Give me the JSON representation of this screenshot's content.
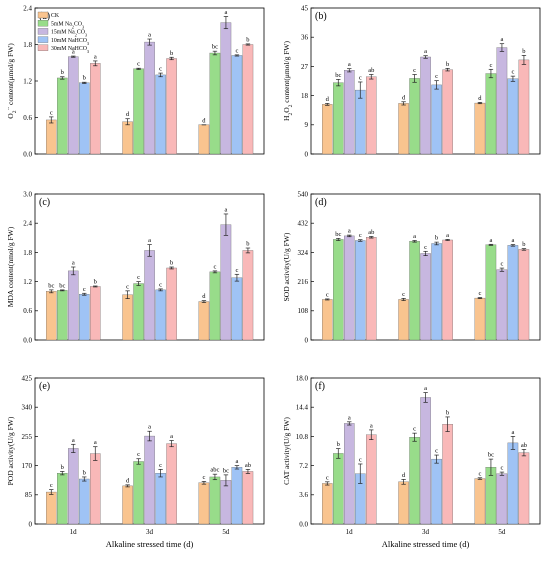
{
  "colors": {
    "CK": "#f9c48f",
    "5mM Na2CO3": "#98dc8a",
    "15mM Na2CO3": "#c7b7e0",
    "10mM NaHCO3": "#9fc3f5",
    "30mM NaHCO3": "#f9b8b8"
  },
  "legend": {
    "placement": "top-left",
    "items": [
      {
        "key": "CK",
        "base": "CK",
        "sub": ""
      },
      {
        "key": "5mM Na2CO3",
        "base": "5mM Na",
        "sub": "2",
        "rest": "CO",
        "sub2": "3"
      },
      {
        "key": "15mM Na2CO3",
        "base": "15mM Na",
        "sub": "2",
        "rest": "CO",
        "sub2": "3"
      },
      {
        "key": "10mM NaHCO3",
        "base": "10mM NaHCO",
        "sub": "3"
      },
      {
        "key": "30mM NaHCO3",
        "base": "30mM NaHCO",
        "sub": "3"
      }
    ]
  },
  "xlabel": "Alkaline stressed time (d)",
  "chart_data": [
    {
      "panel": "(a)",
      "type": "bar",
      "ylabel_parts": [
        "O",
        "2",
        "·",
        "-",
        " content(μmol/g FW)"
      ],
      "ylim": [
        0,
        2.4
      ],
      "yticks": [
        "0.0",
        "0.6",
        "1.2",
        "1.8",
        "2.4"
      ],
      "yticks_values": [
        0,
        0.6,
        1.2,
        1.8,
        2.4
      ],
      "categories": [
        "1d",
        "3d",
        "5d"
      ],
      "series": [
        {
          "name": "CK",
          "values": [
            0.56,
            0.53,
            0.48
          ],
          "errors": [
            0.05,
            0.05,
            0.0
          ],
          "labels": [
            "c",
            "d",
            "d"
          ]
        },
        {
          "name": "5mM Na2CO3",
          "values": [
            1.25,
            1.4,
            1.66
          ],
          "errors": [
            0.02,
            0.01,
            0.03
          ],
          "labels": [
            "b",
            "c",
            "bc"
          ]
        },
        {
          "name": "15mM Na2CO3",
          "values": [
            1.6,
            1.84,
            2.16
          ],
          "errors": [
            0.01,
            0.05,
            0.1
          ],
          "labels": [
            "a",
            "a",
            "a"
          ]
        },
        {
          "name": "10mM NaHCO3",
          "values": [
            1.17,
            1.3,
            1.62
          ],
          "errors": [
            0.01,
            0.03,
            0.01
          ],
          "labels": [
            "b",
            "c",
            "c"
          ]
        },
        {
          "name": "30mM NaHCO3",
          "values": [
            1.49,
            1.57,
            1.8
          ],
          "errors": [
            0.04,
            0.02,
            0.01
          ],
          "labels": [
            "a",
            "b",
            "b"
          ]
        }
      ]
    },
    {
      "panel": "(b)",
      "type": "bar",
      "ylabel_parts": [
        "H",
        "2",
        "",
        "",
        "O",
        "2",
        " content(μmol/g FW)"
      ],
      "ylim": [
        0,
        45
      ],
      "yticks": [
        "0",
        "9",
        "18",
        "27",
        "36",
        "45"
      ],
      "yticks_values": [
        0,
        9,
        18,
        27,
        36,
        45
      ],
      "categories": [
        "1d",
        "3d",
        "5d"
      ],
      "series": [
        {
          "name": "CK",
          "values": [
            15.3,
            15.6,
            15.7
          ],
          "errors": [
            0.3,
            0.5,
            0.2
          ],
          "labels": [
            "d",
            "d",
            "d"
          ]
        },
        {
          "name": "5mM Na2CO3",
          "values": [
            22.0,
            23.3,
            24.8
          ],
          "errors": [
            1.0,
            1.2,
            1.3
          ],
          "labels": [
            "bc",
            "c",
            "c"
          ]
        },
        {
          "name": "15mM Na2CO3",
          "values": [
            25.8,
            29.9,
            32.8
          ],
          "errors": [
            0.5,
            0.4,
            1.2
          ],
          "labels": [
            "a",
            "a",
            "a"
          ]
        },
        {
          "name": "10mM NaHCO3",
          "values": [
            19.7,
            21.3,
            23.2
          ],
          "errors": [
            2.5,
            1.3,
            0.8
          ],
          "labels": [
            "c",
            "c",
            "c"
          ]
        },
        {
          "name": "30mM NaHCO3",
          "values": [
            23.8,
            26.0,
            29.0
          ],
          "errors": [
            0.7,
            0.4,
            1.4
          ],
          "labels": [
            "ab",
            "b",
            "b"
          ]
        }
      ]
    },
    {
      "panel": "(c)",
      "type": "bar",
      "ylabel_parts": [
        "MDA content(nmol/g FW)"
      ],
      "ylim": [
        0,
        3.0
      ],
      "yticks": [
        "0.0",
        "0.6",
        "1.2",
        "1.8",
        "2.4",
        "3.0"
      ],
      "yticks_values": [
        0,
        0.6,
        1.2,
        1.8,
        2.4,
        3.0
      ],
      "categories": [
        "1d",
        "3d",
        "5d"
      ],
      "series": [
        {
          "name": "CK",
          "values": [
            1.0,
            0.93,
            0.79
          ],
          "errors": [
            0.03,
            0.08,
            0.02
          ],
          "labels": [
            "bc",
            "c",
            "d"
          ]
        },
        {
          "name": "5mM Na2CO3",
          "values": [
            1.02,
            1.16,
            1.4
          ],
          "errors": [
            0.01,
            0.04,
            0.02
          ],
          "labels": [
            "bc",
            "c",
            "c"
          ]
        },
        {
          "name": "15mM Na2CO3",
          "values": [
            1.42,
            1.84,
            2.37
          ],
          "errors": [
            0.08,
            0.12,
            0.22
          ],
          "labels": [
            "a",
            "a",
            "a"
          ]
        },
        {
          "name": "10mM NaHCO3",
          "values": [
            0.94,
            1.03,
            1.28
          ],
          "errors": [
            0.02,
            0.02,
            0.07
          ],
          "labels": [
            "c",
            "c",
            "c"
          ]
        },
        {
          "name": "30mM NaHCO3",
          "values": [
            1.1,
            1.48,
            1.84
          ],
          "errors": [
            0.01,
            0.02,
            0.05
          ],
          "labels": [
            "b",
            "b",
            "b"
          ]
        }
      ]
    },
    {
      "panel": "(d)",
      "type": "bar",
      "ylabel_parts": [
        "SOD activity(U/g FW)"
      ],
      "ylim": [
        0,
        540
      ],
      "yticks": [
        "0",
        "108",
        "216",
        "324",
        "432",
        "540"
      ],
      "yticks_values": [
        0,
        108,
        216,
        324,
        432,
        540
      ],
      "categories": [
        "1d",
        "3d",
        "5d"
      ],
      "series": [
        {
          "name": "CK",
          "values": [
            150,
            150,
            155
          ],
          "errors": [
            2,
            4,
            2
          ],
          "labels": [
            "c",
            "c",
            "c"
          ]
        },
        {
          "name": "5mM Na2CO3",
          "values": [
            372,
            365,
            352
          ],
          "errors": [
            4,
            3,
            2
          ],
          "labels": [
            "bc",
            "a",
            "a"
          ]
        },
        {
          "name": "15mM Na2CO3",
          "values": [
            385,
            320,
            260
          ],
          "errors": [
            3,
            8,
            6
          ],
          "labels": [
            "a",
            "c",
            "c"
          ]
        },
        {
          "name": "10mM NaHCO3",
          "values": [
            368,
            357,
            350
          ],
          "errors": [
            3,
            5,
            3
          ],
          "labels": [
            "c",
            "b",
            "a"
          ]
        },
        {
          "name": "30mM NaHCO3",
          "values": [
            380,
            370,
            335
          ],
          "errors": [
            3,
            2,
            3
          ],
          "labels": [
            "ab",
            "a",
            "b"
          ]
        }
      ]
    },
    {
      "panel": "(e)",
      "type": "bar",
      "ylabel_parts": [
        "POD activity(U/g FW)"
      ],
      "ylim": [
        0,
        425
      ],
      "yticks": [
        "0",
        "85",
        "170",
        "255",
        "340",
        "425"
      ],
      "yticks_values": [
        0,
        85,
        170,
        255,
        340,
        425
      ],
      "categories": [
        "1d",
        "3d",
        "5d"
      ],
      "series": [
        {
          "name": "CK",
          "values": [
            93,
            111,
            120
          ],
          "errors": [
            7,
            3,
            4
          ],
          "labels": [
            "c",
            "d",
            "c"
          ]
        },
        {
          "name": "5mM Na2CO3",
          "values": [
            148,
            182,
            137
          ],
          "errors": [
            5,
            8,
            8
          ],
          "labels": [
            "b",
            "c",
            "abc"
          ]
        },
        {
          "name": "15mM Na2CO3",
          "values": [
            220,
            256,
            127
          ],
          "errors": [
            12,
            14,
            16
          ],
          "labels": [
            "a",
            "a",
            "bc"
          ]
        },
        {
          "name": "10mM NaHCO3",
          "values": [
            131,
            148,
            165
          ],
          "errors": [
            6,
            11,
            5
          ],
          "labels": [
            "b",
            "c",
            "a"
          ]
        },
        {
          "name": "30mM NaHCO3",
          "values": [
            205,
            234,
            153
          ],
          "errors": [
            20,
            9,
            6
          ],
          "labels": [
            "a",
            "a",
            "ab"
          ]
        }
      ]
    },
    {
      "panel": "(f)",
      "type": "bar",
      "ylabel_parts": [
        "CAT activity(U/g FW)"
      ],
      "ylim": [
        0,
        18
      ],
      "yticks": [
        "0.0",
        "3.6",
        "7.2",
        "10.8",
        "14.4",
        "18.0"
      ],
      "yticks_values": [
        0,
        3.6,
        7.2,
        10.8,
        14.4,
        18.0
      ],
      "categories": [
        "1d",
        "3d",
        "5d"
      ],
      "series": [
        {
          "name": "CK",
          "values": [
            5.0,
            5.2,
            5.6
          ],
          "errors": [
            0.2,
            0.3,
            0.1
          ],
          "labels": [
            "c",
            "d",
            "c"
          ]
        },
        {
          "name": "5mM Na2CO3",
          "values": [
            8.7,
            10.7,
            7.0
          ],
          "errors": [
            0.6,
            0.5,
            1.0
          ],
          "labels": [
            "b",
            "c",
            "bc"
          ]
        },
        {
          "name": "15mM Na2CO3",
          "values": [
            12.4,
            15.6,
            6.2
          ],
          "errors": [
            0.2,
            0.6,
            0.2
          ],
          "labels": [
            "a",
            "a",
            "c"
          ]
        },
        {
          "name": "10mM NaHCO3",
          "values": [
            6.2,
            8.0,
            10.0
          ],
          "errors": [
            1.2,
            0.5,
            0.8
          ],
          "labels": [
            "c",
            "c",
            "a"
          ]
        },
        {
          "name": "30mM NaHCO3",
          "values": [
            11.0,
            12.3,
            8.8
          ],
          "errors": [
            0.6,
            0.9,
            0.4
          ],
          "labels": [
            "a",
            "b",
            "ab"
          ]
        }
      ]
    }
  ]
}
